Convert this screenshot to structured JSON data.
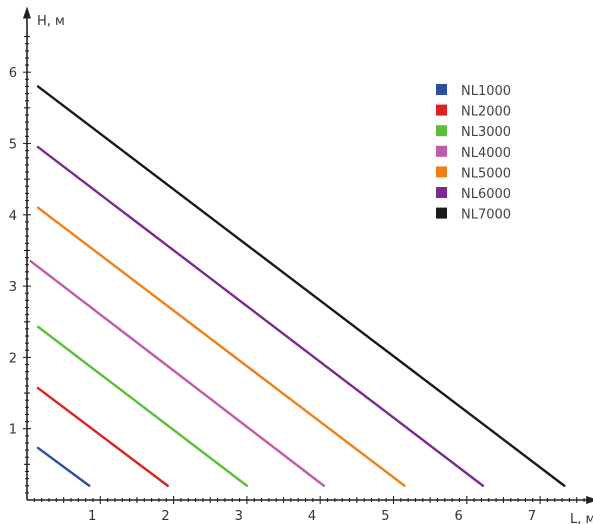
{
  "chart_data": {
    "type": "line",
    "xlabel": "L, м",
    "ylabel": "H, м",
    "xlim": [
      0,
      7.6
    ],
    "ylim": [
      0,
      6.5
    ],
    "x_ticks": [
      1,
      2,
      3,
      4,
      5,
      6,
      7
    ],
    "y_ticks": [
      1,
      2,
      3,
      4,
      5,
      6
    ],
    "grid": false,
    "legend_position": "top-right",
    "series": [
      {
        "name": "NL1000",
        "color": "#2d4fa3",
        "x": [
          0.15,
          0.85
        ],
        "y": [
          0.73,
          0.2
        ]
      },
      {
        "name": "NL2000",
        "color": "#e02020",
        "x": [
          0.15,
          1.92
        ],
        "y": [
          1.57,
          0.2
        ]
      },
      {
        "name": "NL3000",
        "color": "#5bbf3a",
        "x": [
          0.15,
          3.0
        ],
        "y": [
          2.43,
          0.2
        ]
      },
      {
        "name": "NL4000",
        "color": "#c05aaa",
        "x": [
          0.05,
          4.05
        ],
        "y": [
          3.35,
          0.2
        ]
      },
      {
        "name": "NL5000",
        "color": "#f07f1a",
        "x": [
          0.15,
          5.15
        ],
        "y": [
          4.1,
          0.2
        ]
      },
      {
        "name": "NL6000",
        "color": "#7c2a8e",
        "x": [
          0.15,
          6.22
        ],
        "y": [
          4.95,
          0.2
        ]
      },
      {
        "name": "NL7000",
        "color": "#1a1a1a",
        "x": [
          0.15,
          7.33
        ],
        "y": [
          5.8,
          0.2
        ]
      }
    ]
  }
}
